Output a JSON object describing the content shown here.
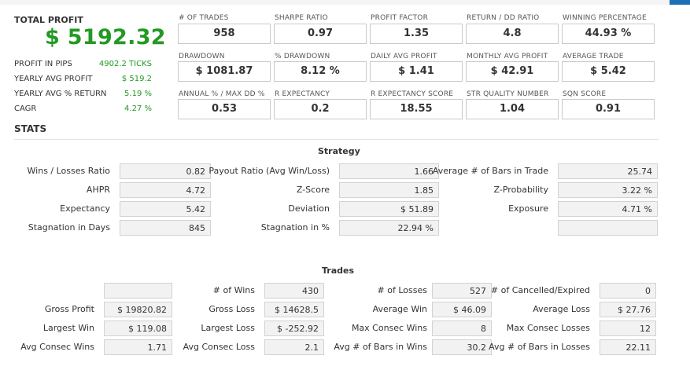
{
  "summary": {
    "total_profit_label": "TOTAL PROFIT",
    "total_profit_value": "$ 5192.32",
    "rows": [
      {
        "label": "PROFIT IN PIPS",
        "value": "4902.2 TICKS"
      },
      {
        "label": "YEARLY AVG PROFIT",
        "value": "$ 519.2"
      },
      {
        "label": "YEARLY AVG % RETURN",
        "value": "5.19 %"
      },
      {
        "label": "CAGR",
        "value": "4.27 %"
      }
    ]
  },
  "metrics": [
    {
      "label": "# OF TRADES",
      "value": "958"
    },
    {
      "label": "SHARPE RATIO",
      "value": "0.97"
    },
    {
      "label": "PROFIT FACTOR",
      "value": "1.35"
    },
    {
      "label": "RETURN / DD RATIO",
      "value": "4.8"
    },
    {
      "label": "WINNING PERCENTAGE",
      "value": "44.93 %"
    },
    {
      "label": "DRAWDOWN",
      "value": "$ 1081.87"
    },
    {
      "label": "% DRAWDOWN",
      "value": "8.12 %"
    },
    {
      "label": "DAILY AVG PROFIT",
      "value": "$ 1.41"
    },
    {
      "label": "MONTHLY AVG PROFIT",
      "value": "$ 42.91"
    },
    {
      "label": "AVERAGE TRADE",
      "value": "$ 5.42"
    },
    {
      "label": "ANNUAL % / MAX DD %",
      "value": "0.53"
    },
    {
      "label": "R EXPECTANCY",
      "value": "0.2"
    },
    {
      "label": "R EXPECTANCY SCORE",
      "value": "18.55"
    },
    {
      "label": "STR QUALITY NUMBER",
      "value": "1.04"
    },
    {
      "label": "SQN SCORE",
      "value": "0.91"
    }
  ],
  "stats_title": "STATS",
  "strategy": {
    "title": "Strategy",
    "rows": [
      [
        {
          "label": "Wins / Losses Ratio",
          "value": "0.82"
        },
        {
          "label": "Payout Ratio (Avg Win/Loss)",
          "value": "1.66"
        },
        {
          "label": "Average # of Bars in Trade",
          "value": "25.74"
        }
      ],
      [
        {
          "label": "AHPR",
          "value": "4.72"
        },
        {
          "label": "Z-Score",
          "value": "1.85"
        },
        {
          "label": "Z-Probability",
          "value": "3.22 %"
        }
      ],
      [
        {
          "label": "Expectancy",
          "value": "5.42"
        },
        {
          "label": "Deviation",
          "value": "$ 51.89"
        },
        {
          "label": "Exposure",
          "value": "4.71 %"
        }
      ],
      [
        {
          "label": "Stagnation in Days",
          "value": "845"
        },
        {
          "label": "Stagnation in %",
          "value": "22.94 %"
        },
        {
          "label": "",
          "value": ""
        }
      ]
    ]
  },
  "trades": {
    "title": "Trades",
    "rows": [
      [
        {
          "label": "",
          "value": ""
        },
        {
          "label": "# of Wins",
          "value": "430"
        },
        {
          "label": "# of Losses",
          "value": "527"
        },
        {
          "label": "# of Cancelled/Expired",
          "value": "0"
        }
      ],
      [
        {
          "label": "Gross Profit",
          "value": "$ 19820.82"
        },
        {
          "label": "Gross Loss",
          "value": "$ 14628.5"
        },
        {
          "label": "Average Win",
          "value": "$ 46.09"
        },
        {
          "label": "Average Loss",
          "value": "$ 27.76"
        }
      ],
      [
        {
          "label": "Largest Win",
          "value": "$ 119.08"
        },
        {
          "label": "Largest Loss",
          "value": "$ -252.92"
        },
        {
          "label": "Max Consec Wins",
          "value": "8"
        },
        {
          "label": "Max Consec Losses",
          "value": "12"
        }
      ],
      [
        {
          "label": "Avg Consec Wins",
          "value": "1.71"
        },
        {
          "label": "Avg Consec Loss",
          "value": "2.1"
        },
        {
          "label": "Avg # of Bars in Wins",
          "value": "30.2"
        },
        {
          "label": "Avg # of Bars in Losses",
          "value": "22.11"
        }
      ]
    ]
  }
}
